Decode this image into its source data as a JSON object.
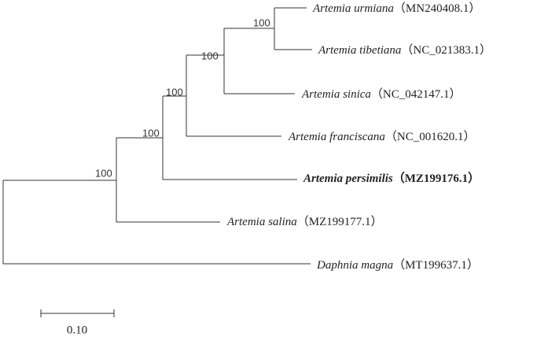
{
  "taxa": [
    {
      "species": "Artemia urmiana",
      "accession": "（MN240408.1）"
    },
    {
      "species": "Artemia tibetiana",
      "accession": "（NC_021383.1）"
    },
    {
      "species": "Artemia sinica",
      "accession": "（NC_042147.1）"
    },
    {
      "species": "Artemia franciscana",
      "accession": "（NC_001620.1）"
    },
    {
      "species": "Artemia persimilis",
      "accession": "（MZ199176.1）"
    },
    {
      "species": "Artemia salina",
      "accession": "（MZ199177.1）"
    },
    {
      "species": "Daphnia magna",
      "accession": "（MT199637.1）"
    }
  ],
  "bootstrap": [
    100,
    100,
    100,
    100,
    100
  ],
  "scale_bar": "0.10"
}
